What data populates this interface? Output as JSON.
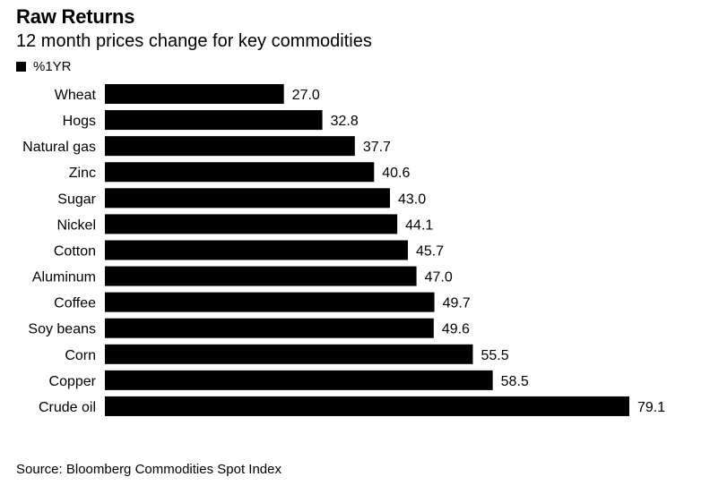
{
  "chart_data": {
    "type": "bar",
    "orientation": "horizontal",
    "title": "Raw Returns",
    "subtitle": "12 month prices change for key commodities",
    "legend": [
      "%1YR"
    ],
    "legend_placement": "top-left",
    "categories": [
      "Wheat",
      "Hogs",
      "Natural gas",
      "Zinc",
      "Sugar",
      "Nickel",
      "Cotton",
      "Aluminum",
      "Coffee",
      "Soy beans",
      "Corn",
      "Copper",
      "Crude oil"
    ],
    "values": [
      27.0,
      32.8,
      37.7,
      40.6,
      43.0,
      44.1,
      45.7,
      47.0,
      49.7,
      49.6,
      55.5,
      58.5,
      79.1
    ],
    "value_labels": [
      "27.0",
      "32.8",
      "37.7",
      "40.6",
      "43.0",
      "44.1",
      "45.7",
      "47.0",
      "49.7",
      "49.6",
      "55.5",
      "58.5",
      "79.1"
    ],
    "xlim": [
      0,
      79.1
    ],
    "grid": false,
    "bar_color": "#000000",
    "source": "Source: Bloomberg Commodities Spot Index"
  }
}
